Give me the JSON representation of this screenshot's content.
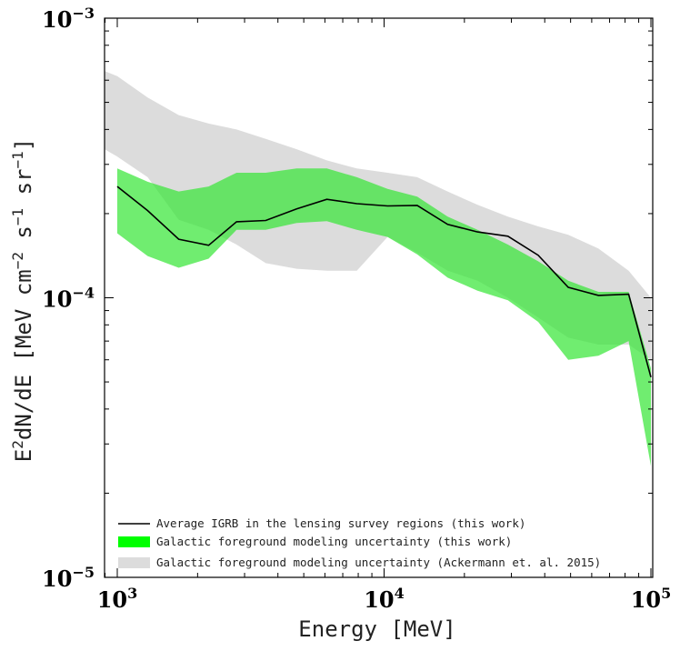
{
  "chart_data": {
    "type": "area",
    "title": "",
    "xlabel": "Energy [MeV]",
    "ylabel": "E2dN/dE [MeV cm-2 s-1 sr-1]",
    "ylabel_parts": {
      "main": "E",
      "sup1": "2",
      "mid": "dN/dE [MeV cm",
      "sup2": "−2",
      "mid2": " s",
      "sup3": "−1",
      "mid3": " sr",
      "sup4": "−1",
      "end": "]"
    },
    "xscale": "log",
    "yscale": "log",
    "xlim": [
      850,
      100000
    ],
    "ylim": [
      1e-05,
      0.001
    ],
    "x_ticks": [
      {
        "value": 1000,
        "base": "10",
        "exp": "3"
      },
      {
        "value": 10000,
        "base": "10",
        "exp": "4"
      },
      {
        "value": 100000,
        "base": "10",
        "exp": "5"
      }
    ],
    "y_ticks": [
      {
        "value": 1e-05,
        "base": "10",
        "exp": "−5"
      },
      {
        "value": 0.0001,
        "base": "10",
        "exp": "−4"
      },
      {
        "value": 0.001,
        "base": "10",
        "exp": "−3"
      }
    ],
    "legend_position": "bottom-left",
    "colors": {
      "line": "#000000",
      "green_band": "#39e639",
      "green_legend": "#00ff00",
      "gray_band": "#dcdcdc"
    },
    "series": [
      {
        "name": "Galactic foreground modeling uncertainty (Ackermann et. al. 2015)",
        "kind": "band",
        "color_key": "gray_band",
        "x": [
          850,
          1000,
          1300,
          1700,
          2200,
          2800,
          3600,
          4700,
          6100,
          7900,
          10300,
          13300,
          17300,
          22400,
          29100,
          37800,
          49000,
          63600,
          82500,
          100000
        ],
        "upper": [
          0.00066,
          0.00062,
          0.00052,
          0.00045,
          0.00042,
          0.0004,
          0.00037,
          0.00034,
          0.00031,
          0.00029,
          0.00028,
          0.00027,
          0.00024,
          0.000215,
          0.000195,
          0.00018,
          0.000168,
          0.00015,
          0.000125,
          0.0001
        ],
        "lower": [
          0.00035,
          0.00032,
          0.00027,
          0.00019,
          0.000175,
          0.000155,
          0.000133,
          0.000127,
          0.000125,
          0.000125,
          0.000165,
          0.000145,
          0.000125,
          0.000115,
          0.0001,
          8.5e-05,
          7.2e-05,
          6.8e-05,
          6.8e-05,
          6e-05
        ]
      },
      {
        "name": "Galactic foreground modeling uncertainty (this work)",
        "kind": "band",
        "color_key": "green_band",
        "x": [
          1000,
          1300,
          1700,
          2200,
          2800,
          3600,
          4700,
          6100,
          7900,
          10300,
          13300,
          17300,
          22400,
          29100,
          37800,
          49000,
          63600,
          82500,
          100000
        ],
        "upper": [
          0.00029,
          0.00026,
          0.00024,
          0.00025,
          0.00028,
          0.00028,
          0.00029,
          0.00029,
          0.00027,
          0.000245,
          0.00023,
          0.000195,
          0.000175,
          0.000155,
          0.000135,
          0.000115,
          0.000105,
          0.000105,
          5.6e-05
        ],
        "lower": [
          0.00017,
          0.000141,
          0.000128,
          0.000138,
          0.000175,
          0.000175,
          0.000185,
          0.000188,
          0.000175,
          0.000165,
          0.000143,
          0.000118,
          0.000106,
          9.8e-05,
          8.2e-05,
          6e-05,
          6.2e-05,
          7e-05,
          2.5e-05
        ]
      },
      {
        "name": "Average IGRB in the lensing survey regions (this work)",
        "kind": "line",
        "color_key": "line",
        "x": [
          1000,
          1300,
          1700,
          2200,
          2800,
          3600,
          4700,
          6100,
          7900,
          10300,
          13300,
          17300,
          22400,
          29100,
          37800,
          49000,
          63600,
          82500,
          100000
        ],
        "y": [
          0.00025,
          0.000205,
          0.000162,
          0.000154,
          0.000187,
          0.000189,
          0.000208,
          0.000225,
          0.000217,
          0.000213,
          0.000214,
          0.000183,
          0.000172,
          0.000166,
          0.000142,
          0.000109,
          0.000102,
          0.000103,
          5.2e-05
        ]
      }
    ],
    "legend": [
      {
        "label": "Average IGRB in the lensing survey regions (this work)",
        "kind": "line",
        "color_key": "line"
      },
      {
        "label": "Galactic foreground modeling uncertainty (this work)",
        "kind": "patch",
        "color_key": "green_legend"
      },
      {
        "label": "Galactic foreground modeling uncertainty (Ackermann et. al. 2015)",
        "kind": "patch",
        "color_key": "gray_band"
      }
    ]
  }
}
